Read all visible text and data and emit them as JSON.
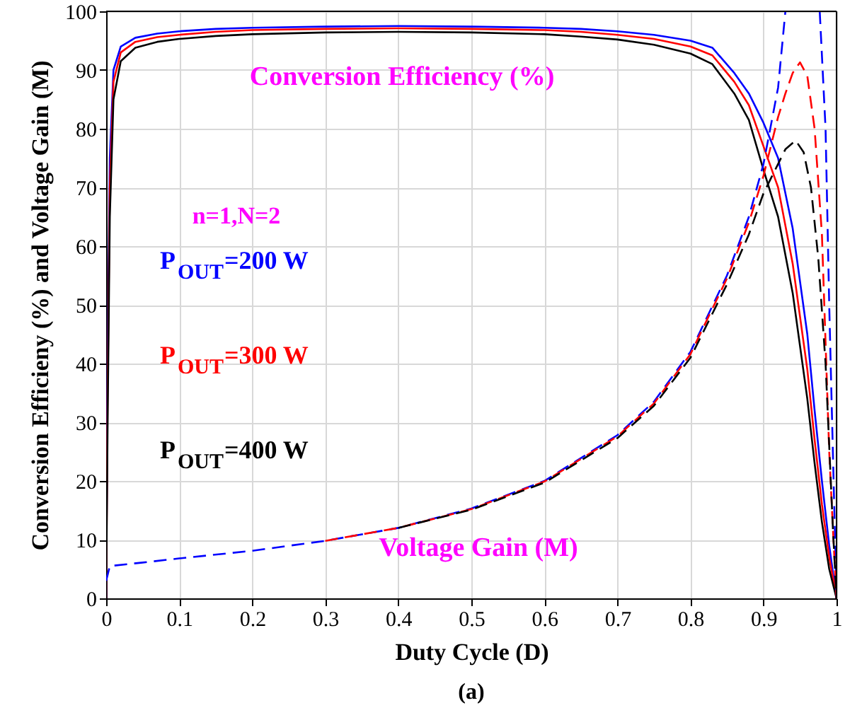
{
  "chart_data": {
    "type": "line",
    "xlabel": "Duty Cycle (D)",
    "ylabel": "Conversion Efficieny (%) and Voltage Gain (M)",
    "annotations": [
      "Conversion Efficiency (%)",
      "n=1,N=2",
      "Voltage Gain (M)",
      "(a)"
    ],
    "xlim": [
      0,
      1
    ],
    "ylim": [
      0,
      100
    ],
    "xticks": [
      0,
      0.1,
      0.2,
      0.3,
      0.4,
      0.5,
      0.6,
      0.7,
      0.8,
      0.9,
      1
    ],
    "yticks": [
      0,
      10,
      20,
      30,
      40,
      50,
      60,
      70,
      80,
      90,
      100
    ],
    "grid": true,
    "marker": "none",
    "series": [
      {
        "name": "P$_{OUT}$=200 W",
        "color": "#0000ff",
        "line_style": "solid",
        "x": [
          0,
          0.002,
          0.005,
          0.01,
          0.02,
          0.04,
          0.07,
          0.1,
          0.15,
          0.2,
          0.3,
          0.4,
          0.5,
          0.6,
          0.65,
          0.7,
          0.75,
          0.8,
          0.83,
          0.86,
          0.88,
          0.9,
          0.92,
          0.94,
          0.96,
          0.97,
          0.98,
          0.99,
          1
        ],
        "values": [
          0,
          40,
          75,
          90,
          94,
          95.5,
          96.2,
          96.6,
          97,
          97.2,
          97.4,
          97.5,
          97.4,
          97.2,
          97,
          96.6,
          96,
          95,
          93.8,
          89.5,
          86,
          81,
          75,
          63,
          45,
          32,
          20,
          9,
          0
        ]
      },
      {
        "name": "P$_{OUT}$=300 W",
        "color": "#ff0000",
        "line_style": "solid",
        "x": [
          0,
          0.002,
          0.005,
          0.01,
          0.02,
          0.04,
          0.07,
          0.1,
          0.15,
          0.2,
          0.3,
          0.4,
          0.5,
          0.6,
          0.65,
          0.7,
          0.75,
          0.8,
          0.83,
          0.86,
          0.88,
          0.9,
          0.92,
          0.94,
          0.96,
          0.97,
          0.98,
          0.99,
          1
        ],
        "values": [
          0,
          35,
          70,
          88,
          93,
          94.8,
          95.6,
          96,
          96.5,
          96.8,
          97,
          97.1,
          97,
          96.8,
          96.5,
          96,
          95.3,
          94,
          92.5,
          88,
          84,
          77,
          70,
          57,
          39,
          27,
          16,
          7,
          0
        ]
      },
      {
        "name": "P$_{OUT}$=400 W",
        "color": "#000000",
        "line_style": "solid",
        "x": [
          0,
          0.002,
          0.005,
          0.01,
          0.02,
          0.04,
          0.07,
          0.1,
          0.15,
          0.2,
          0.3,
          0.4,
          0.5,
          0.6,
          0.65,
          0.7,
          0.75,
          0.8,
          0.83,
          0.86,
          0.88,
          0.9,
          0.92,
          0.94,
          0.96,
          0.97,
          0.98,
          0.99,
          1
        ],
        "values": [
          0,
          30,
          65,
          85,
          91.5,
          93.8,
          94.8,
          95.3,
          95.8,
          96.1,
          96.4,
          96.5,
          96.4,
          96.1,
          95.7,
          95.2,
          94.3,
          92.8,
          91,
          86,
          81.5,
          73,
          65,
          52,
          34,
          23,
          13,
          5,
          0
        ]
      },
      {
        "color": "#0000ff",
        "line_style": "dashed",
        "x": [
          0,
          0.005,
          0.05,
          0.1,
          0.2,
          0.3,
          0.4,
          0.5,
          0.6,
          0.7,
          0.75,
          0.8,
          0.85,
          0.88,
          0.9,
          0.92,
          0.93,
          0.955,
          0.977,
          0.985,
          0.99,
          0.995,
          1
        ],
        "values": [
          3,
          5.5,
          6.1,
          6.8,
          8.1,
          9.8,
          12,
          15.3,
          20,
          27.8,
          33.5,
          42,
          55,
          65,
          74,
          87,
          100,
          null,
          100,
          80,
          50,
          25,
          0
        ]
      },
      {
        "color": "#ff0000",
        "line_style": "dashed",
        "x": [
          0.3,
          0.4,
          0.5,
          0.6,
          0.7,
          0.75,
          0.8,
          0.85,
          0.88,
          0.9,
          0.92,
          0.93,
          0.94,
          0.95,
          0.96,
          0.97,
          0.98,
          0.99,
          0.995,
          1
        ],
        "values": [
          9.8,
          12,
          15.2,
          19.9,
          27.6,
          33.2,
          41.6,
          54.5,
          64,
          72,
          82,
          86,
          89.5,
          91.3,
          89,
          80,
          62,
          25,
          12,
          0
        ]
      },
      {
        "color": "#000000",
        "line_style": "dashed",
        "x": [
          0.4,
          0.5,
          0.6,
          0.7,
          0.75,
          0.8,
          0.85,
          0.88,
          0.9,
          0.92,
          0.93,
          0.944,
          0.955,
          0.965,
          0.975,
          0.985,
          0.995,
          1
        ],
        "values": [
          12,
          15.1,
          19.7,
          27.3,
          32.8,
          41,
          53.5,
          62,
          69,
          74,
          76.5,
          78,
          76,
          70,
          58,
          40,
          12,
          0
        ]
      }
    ]
  }
}
